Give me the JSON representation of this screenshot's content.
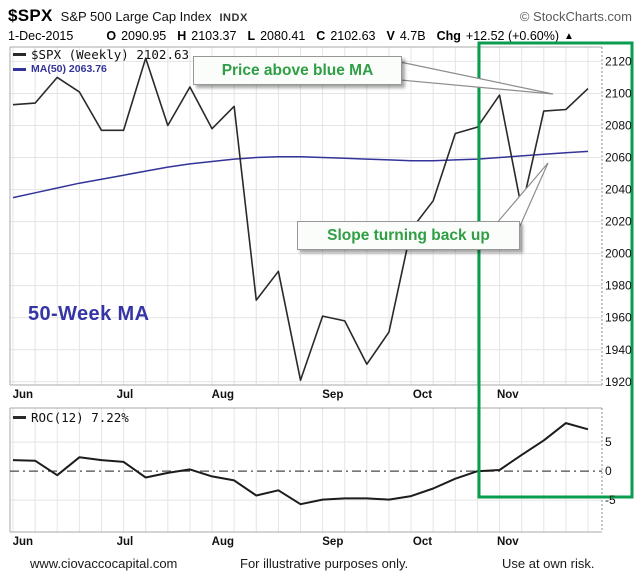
{
  "header": {
    "symbol": "$SPX",
    "name": "S&P 500 Large Cap Index",
    "exchange": "INDX",
    "source": "© StockCharts.com",
    "date": "1-Dec-2015",
    "ohlc": [
      {
        "k": "O",
        "v": "2090.95"
      },
      {
        "k": "H",
        "v": "2103.37"
      },
      {
        "k": "L",
        "v": "2080.41"
      },
      {
        "k": "C",
        "v": "2102.63"
      },
      {
        "k": "V",
        "v": "4.7B"
      },
      {
        "k": "Chg",
        "v": "+12.52 (+0.60%)"
      }
    ],
    "change_arrow": "▲"
  },
  "annotations": {
    "price_above_ma": "Price above blue MA",
    "slope_turning": "Slope turning back up",
    "fifty_week_ma": "50-Week MA"
  },
  "footer": {
    "site": "www.ciovaccocapital.com",
    "disclaimer": "For illustrative purposes only.",
    "risk": "Use at own risk."
  },
  "colors": {
    "accent_green": "#0a9c4f",
    "annotation_green": "#2f9e44",
    "ma_navy": "#333399",
    "price_line": "#2a2a2a",
    "grid": "#e4e4e4",
    "frame": "#a8a8a8"
  },
  "chart_data": [
    {
      "type": "line",
      "title": "$SPX (Weekly) 2102.63",
      "legend": [
        {
          "label": "$SPX (Weekly) 2102.63",
          "color": "#2a2a2a"
        },
        {
          "label": "MA(50) 2063.76",
          "color": "#333399"
        }
      ],
      "x_months": [
        {
          "label": "Jun",
          "week": 0.3
        },
        {
          "label": "Jul",
          "week": 5.0
        },
        {
          "label": "Aug",
          "week": 9.3
        },
        {
          "label": "Sep",
          "week": 14.3
        },
        {
          "label": "Oct",
          "week": 18.4
        },
        {
          "label": "Nov",
          "week": 22.2
        }
      ],
      "ylim": [
        1918,
        2129
      ],
      "yticks": [
        2120,
        2100,
        2080,
        2060,
        2040,
        2020,
        2000,
        1980,
        1960,
        1940,
        1920
      ],
      "grid": true,
      "series": [
        {
          "name": "$SPX (Weekly)",
          "color": "#2a2a2a",
          "width": 1.6,
          "values": [
            2093,
            2094,
            2110,
            2101,
            2077,
            2077,
            2122,
            2080,
            2104,
            2078,
            2092,
            1971,
            1989,
            1921,
            1961,
            1958,
            1931,
            1951,
            2015,
            2033,
            2075,
            2079,
            2099,
            2028,
            2089,
            2090,
            2103
          ]
        },
        {
          "name": "MA(50)",
          "color": "#333399",
          "width": 1.5,
          "values": [
            2035,
            2038,
            2041,
            2044,
            2046.5,
            2049,
            2051.5,
            2054,
            2056,
            2057.5,
            2059,
            2060,
            2060.5,
            2060.5,
            2060,
            2059.5,
            2059,
            2058.5,
            2058,
            2058,
            2058.5,
            2059,
            2060,
            2061,
            2062,
            2063,
            2063.8
          ]
        }
      ]
    },
    {
      "type": "line",
      "title": "ROC(12) 7.22%",
      "legend": [
        {
          "label": "ROC(12) 7.22%",
          "color": "#2a2a2a"
        }
      ],
      "ylim": [
        -10.5,
        10.9
      ],
      "yticks": [
        5,
        0,
        -5
      ],
      "zero_line": true,
      "grid": true,
      "series": [
        {
          "name": "ROC(12)",
          "color": "#1c1c1c",
          "width": 2,
          "values": [
            1.9,
            1.8,
            -0.7,
            2.4,
            1.9,
            1.6,
            -1.1,
            -0.3,
            0.3,
            -0.9,
            -1.6,
            -4.2,
            -3.3,
            -5.7,
            -4.9,
            -4.7,
            -4.7,
            -4.9,
            -4.3,
            -3.0,
            -1.3,
            0.0,
            0.2,
            2.8,
            5.3,
            8.3,
            7.22
          ]
        }
      ]
    }
  ],
  "highlight_box": {
    "meaning": "November recovery highlight"
  }
}
